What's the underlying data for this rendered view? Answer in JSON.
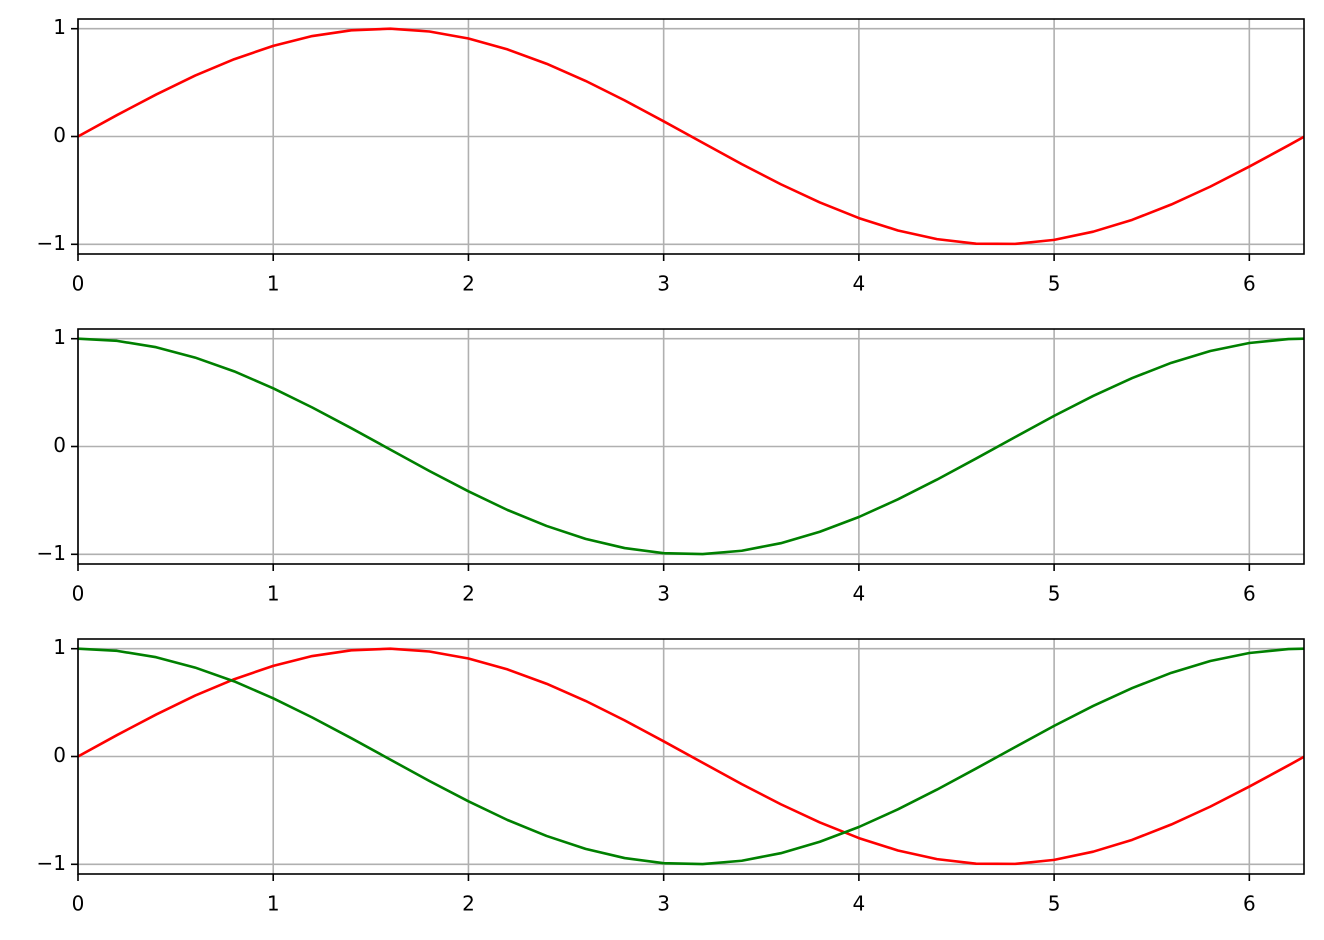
{
  "chart_data": [
    {
      "type": "line",
      "grid": true,
      "x": [
        0,
        0.2,
        0.4,
        0.6,
        0.8,
        1.0,
        1.2,
        1.4,
        1.6,
        1.8,
        2.0,
        2.2,
        2.4,
        2.6,
        2.8,
        3.0,
        3.2,
        3.4,
        3.6,
        3.8,
        4.0,
        4.2,
        4.4,
        4.6,
        4.8,
        5.0,
        5.2,
        5.4,
        5.6,
        5.8,
        6.0,
        6.2,
        6.28
      ],
      "series": [
        {
          "color": "#ff0000",
          "values": [
            0,
            0.199,
            0.389,
            0.565,
            0.717,
            0.841,
            0.932,
            0.985,
            1.0,
            0.974,
            0.909,
            0.808,
            0.675,
            0.516,
            0.335,
            0.141,
            -0.058,
            -0.256,
            -0.443,
            -0.612,
            -0.757,
            -0.872,
            -0.952,
            -0.994,
            -0.996,
            -0.959,
            -0.883,
            -0.773,
            -0.631,
            -0.465,
            -0.279,
            -0.083,
            -0.003
          ]
        }
      ],
      "xlim": [
        0,
        6.28
      ],
      "xticks": [
        0,
        1,
        2,
        3,
        4,
        5,
        6
      ],
      "ylim": [
        -1.09,
        1.09
      ],
      "yticks": [
        {
          "value": -1,
          "label": "−1"
        },
        0,
        1
      ]
    },
    {
      "type": "line",
      "grid": true,
      "x": [
        0,
        0.2,
        0.4,
        0.6,
        0.8,
        1.0,
        1.2,
        1.4,
        1.6,
        1.8,
        2.0,
        2.2,
        2.4,
        2.6,
        2.8,
        3.0,
        3.2,
        3.4,
        3.6,
        3.8,
        4.0,
        4.2,
        4.4,
        4.6,
        4.8,
        5.0,
        5.2,
        5.4,
        5.6,
        5.8,
        6.0,
        6.2,
        6.28
      ],
      "series": [
        {
          "color": "#008000",
          "values": [
            1,
            0.98,
            0.921,
            0.825,
            0.697,
            0.54,
            0.362,
            0.17,
            -0.029,
            -0.227,
            -0.416,
            -0.589,
            -0.737,
            -0.857,
            -0.942,
            -0.99,
            -0.998,
            -0.967,
            -0.897,
            -0.791,
            -0.654,
            -0.49,
            -0.307,
            -0.112,
            0.087,
            0.284,
            0.469,
            0.635,
            0.776,
            0.886,
            0.96,
            0.997,
            1.0
          ]
        }
      ],
      "xlim": [
        0,
        6.28
      ],
      "xticks": [
        0,
        1,
        2,
        3,
        4,
        5,
        6
      ],
      "ylim": [
        -1.09,
        1.09
      ],
      "yticks": [
        {
          "value": -1,
          "label": "−1"
        },
        0,
        1
      ]
    },
    {
      "type": "line",
      "grid": true,
      "x": [
        0,
        0.2,
        0.4,
        0.6,
        0.8,
        1.0,
        1.2,
        1.4,
        1.6,
        1.8,
        2.0,
        2.2,
        2.4,
        2.6,
        2.8,
        3.0,
        3.2,
        3.4,
        3.6,
        3.8,
        4.0,
        4.2,
        4.4,
        4.6,
        4.8,
        5.0,
        5.2,
        5.4,
        5.6,
        5.8,
        6.0,
        6.2,
        6.28
      ],
      "series": [
        {
          "color": "#ff0000",
          "values": [
            0,
            0.199,
            0.389,
            0.565,
            0.717,
            0.841,
            0.932,
            0.985,
            1.0,
            0.974,
            0.909,
            0.808,
            0.675,
            0.516,
            0.335,
            0.141,
            -0.058,
            -0.256,
            -0.443,
            -0.612,
            -0.757,
            -0.872,
            -0.952,
            -0.994,
            -0.996,
            -0.959,
            -0.883,
            -0.773,
            -0.631,
            -0.465,
            -0.279,
            -0.083,
            -0.003
          ]
        },
        {
          "color": "#008000",
          "values": [
            1,
            0.98,
            0.921,
            0.825,
            0.697,
            0.54,
            0.362,
            0.17,
            -0.029,
            -0.227,
            -0.416,
            -0.589,
            -0.737,
            -0.857,
            -0.942,
            -0.99,
            -0.998,
            -0.967,
            -0.897,
            -0.791,
            -0.654,
            -0.49,
            -0.307,
            -0.112,
            0.087,
            0.284,
            0.469,
            0.635,
            0.776,
            0.886,
            0.96,
            0.997,
            1.0
          ]
        }
      ],
      "xlim": [
        0,
        6.28
      ],
      "xticks": [
        0,
        1,
        2,
        3,
        4,
        5,
        6
      ],
      "ylim": [
        -1.09,
        1.09
      ],
      "yticks": [
        {
          "value": -1,
          "label": "−1"
        },
        0,
        1
      ]
    }
  ]
}
